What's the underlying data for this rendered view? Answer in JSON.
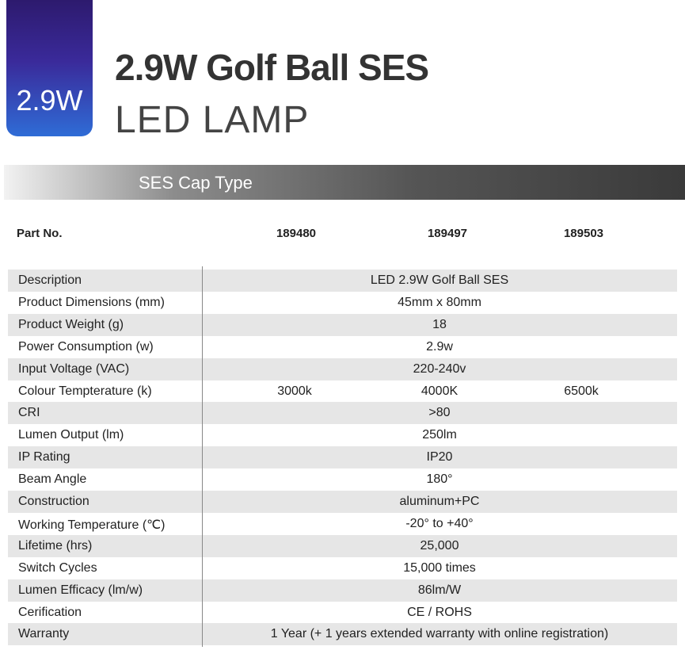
{
  "badge": "2.9W",
  "title": "2.9W Golf Ball SES",
  "subtitle": "LED LAMP",
  "banner": "SES Cap Type",
  "table": {
    "header": [
      "Part No.",
      "189480",
      "189497",
      "189503"
    ],
    "rows": [
      [
        "Description",
        "LED 2.9W Golf Ball SES"
      ],
      [
        "Product Dimensions (mm)",
        "45mm x 80mm"
      ],
      [
        "Product Weight (g)",
        "18"
      ],
      [
        "Power Consumption (w)",
        "2.9w"
      ],
      [
        "Input Voltage (VAC)",
        "220-240v"
      ],
      [
        "Colour Tempterature (k)",
        "3000k",
        "4000K",
        "6500k"
      ],
      [
        "CRI",
        ">80"
      ],
      [
        "Lumen  Output (lm)",
        "250lm"
      ],
      [
        "IP Rating",
        "IP20"
      ],
      [
        "Beam Angle",
        "180°"
      ],
      [
        "Construction",
        "aluminum+PC"
      ],
      [
        "Working Temperature (℃)",
        "-20° to +40°"
      ],
      [
        "Lifetime (hrs)",
        "25,000"
      ],
      [
        "Switch Cycles",
        "15,000 times"
      ],
      [
        "Lumen Efficacy (lm/w)",
        "86lm/W"
      ],
      [
        "Cerification",
        "CE / ROHS"
      ],
      [
        "Warranty",
        "1 Year (+ 1 years extended warranty with online registration)"
      ]
    ]
  }
}
